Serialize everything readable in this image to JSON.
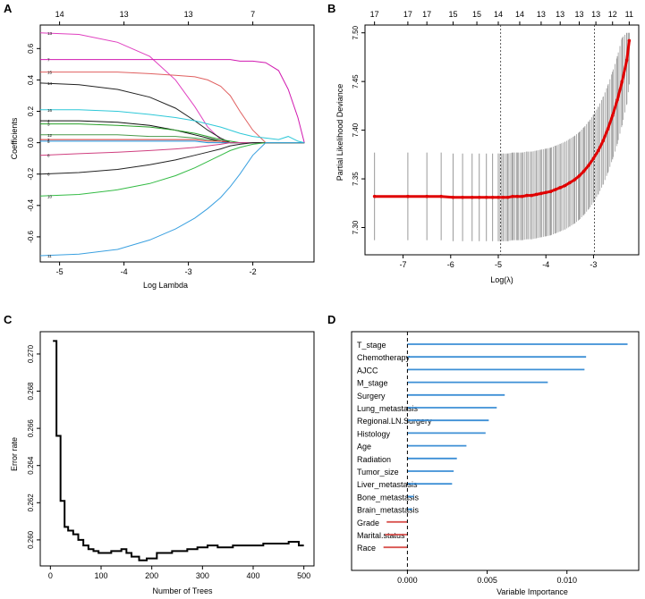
{
  "panel_labels": [
    "A",
    "B",
    "C",
    "D"
  ],
  "chart_data": [
    {
      "id": "A",
      "type": "line",
      "title": "",
      "xlabel": "Log Lambda",
      "ylabel": "Coefficients",
      "xlim": [
        -5.3,
        -1.05
      ],
      "ylim": [
        -0.76,
        0.75
      ],
      "xticks": [
        -5,
        -4,
        -3,
        -2
      ],
      "yticks": [
        -0.6,
        -0.4,
        -0.2,
        0.0,
        0.2,
        0.4,
        0.6
      ],
      "top_axis_ticks": [
        {
          "x": -5,
          "label": "14"
        },
        {
          "x": -4,
          "label": "13"
        },
        {
          "x": -3,
          "label": "13"
        },
        {
          "x": -2,
          "label": "7"
        }
      ],
      "x": [
        -5.3,
        -4.7,
        -4.1,
        -3.6,
        -3.2,
        -2.9,
        -2.7,
        -2.5,
        -2.35,
        -2.2,
        -2.0,
        -1.8,
        -1.6,
        -1.45,
        -1.3,
        -1.2
      ],
      "series": [
        {
          "name": "13",
          "label": "13",
          "color": "#e041c0",
          "values": [
            0.7,
            0.69,
            0.64,
            0.55,
            0.4,
            0.23,
            0.1,
            0.02,
            0.0,
            0,
            0,
            0,
            0,
            0,
            0,
            0
          ]
        },
        {
          "name": "7",
          "label": "7",
          "color": "#d11ab0",
          "values": [
            0.53,
            0.53,
            0.53,
            0.53,
            0.53,
            0.53,
            0.53,
            0.53,
            0.53,
            0.52,
            0.52,
            0.51,
            0.46,
            0.34,
            0.16,
            0.0
          ]
        },
        {
          "name": "15",
          "label": "15",
          "color": "#e06060",
          "values": [
            0.45,
            0.45,
            0.45,
            0.44,
            0.43,
            0.42,
            0.4,
            0.36,
            0.3,
            0.2,
            0.08,
            0.0,
            0,
            0,
            0,
            0
          ]
        },
        {
          "name": "14",
          "label": "14",
          "color": "#222222",
          "values": [
            0.38,
            0.37,
            0.34,
            0.29,
            0.22,
            0.14,
            0.08,
            0.03,
            0.0,
            0,
            0,
            0,
            0,
            0,
            0,
            0
          ]
        },
        {
          "name": "16",
          "label": "16",
          "color": "#2ec8d8",
          "values": [
            0.21,
            0.21,
            0.2,
            0.18,
            0.16,
            0.14,
            0.12,
            0.1,
            0.08,
            0.06,
            0.04,
            0.03,
            0.02,
            0.04,
            0.01,
            0.0
          ]
        },
        {
          "name": "4",
          "label": "4",
          "color": "#111111",
          "values": [
            0.14,
            0.14,
            0.13,
            0.11,
            0.08,
            0.05,
            0.03,
            0.01,
            0.0,
            0,
            0,
            0,
            0,
            0,
            0,
            0
          ]
        },
        {
          "name": "3",
          "label": "3",
          "color": "#28a028",
          "values": [
            0.12,
            0.12,
            0.11,
            0.1,
            0.08,
            0.06,
            0.04,
            0.02,
            0.01,
            0.0,
            0,
            0,
            0,
            0,
            0,
            0
          ]
        },
        {
          "name": "12",
          "label": "12",
          "color": "#4a9a4a",
          "values": [
            0.05,
            0.05,
            0.05,
            0.04,
            0.04,
            0.03,
            0.02,
            0.01,
            0.0,
            0,
            0,
            0,
            0,
            0,
            0,
            0
          ]
        },
        {
          "name": "2",
          "label": "2",
          "color": "#d03030",
          "values": [
            0.02,
            0.02,
            0.02,
            0.02,
            0.02,
            0.02,
            0.01,
            0.01,
            0.0,
            0,
            0,
            0,
            0,
            0,
            0,
            0
          ]
        },
        {
          "name": "5",
          "label": "5",
          "color": "#1a8fd8",
          "values": [
            0.01,
            0.01,
            0.01,
            0.01,
            0.01,
            0.01,
            0.0,
            0,
            0,
            0,
            0,
            0,
            0,
            0,
            0,
            0
          ]
        },
        {
          "name": "8",
          "label": "8",
          "color": "#d04080",
          "values": [
            -0.08,
            -0.07,
            -0.06,
            -0.05,
            -0.04,
            -0.03,
            -0.02,
            -0.01,
            0.0,
            0,
            0,
            0,
            0,
            0,
            0,
            0
          ]
        },
        {
          "name": "6",
          "label": "6",
          "color": "#222222",
          "values": [
            -0.2,
            -0.19,
            -0.17,
            -0.14,
            -0.11,
            -0.08,
            -0.06,
            -0.04,
            -0.02,
            -0.01,
            0.0,
            0,
            0,
            0,
            0,
            0
          ]
        },
        {
          "name": "10",
          "label": "10",
          "color": "#33bb44",
          "values": [
            -0.34,
            -0.33,
            -0.3,
            -0.26,
            -0.21,
            -0.16,
            -0.12,
            -0.08,
            -0.05,
            -0.03,
            -0.01,
            0.0,
            0,
            0,
            0,
            0
          ]
        },
        {
          "name": "11",
          "label": "11",
          "color": "#3aa0e0",
          "values": [
            -0.72,
            -0.71,
            -0.68,
            -0.62,
            -0.55,
            -0.48,
            -0.42,
            -0.35,
            -0.28,
            -0.2,
            -0.08,
            0.0,
            0,
            0,
            0,
            0
          ]
        }
      ]
    },
    {
      "id": "B",
      "type": "scatter",
      "title": "",
      "xlabel": "Log(λ)",
      "ylabel": "Partial Likelihood Deviance",
      "xlim": [
        -7.8,
        -2.05
      ],
      "ylim": [
        7.272,
        7.508
      ],
      "xticks": [
        -7,
        -6,
        -5,
        -4,
        -3
      ],
      "yticks": [
        7.3,
        7.35,
        7.4,
        7.45,
        7.5
      ],
      "top_axis_ticks": [
        {
          "x": -7.6,
          "label": "17"
        },
        {
          "x": -6.9,
          "label": "17"
        },
        {
          "x": -6.5,
          "label": "17"
        },
        {
          "x": -5.95,
          "label": "15"
        },
        {
          "x": -5.45,
          "label": "15"
        },
        {
          "x": -5.0,
          "label": "14"
        },
        {
          "x": -4.55,
          "label": "14"
        },
        {
          "x": -4.1,
          "label": "13"
        },
        {
          "x": -3.7,
          "label": "13"
        },
        {
          "x": -3.3,
          "label": "13"
        },
        {
          "x": -2.95,
          "label": "13"
        },
        {
          "x": -2.6,
          "label": "12"
        },
        {
          "x": -2.25,
          "label": "11"
        }
      ],
      "vlines": [
        -4.95,
        -2.98
      ],
      "x": [
        -7.6,
        -6.9,
        -6.5,
        -6.2,
        -5.95,
        -5.75,
        -5.55,
        -5.4,
        -5.25,
        -5.12,
        -5.0,
        -4.9,
        -4.8,
        -4.7,
        -4.6,
        -4.5,
        -4.4,
        -4.3,
        -4.2,
        -4.1,
        -4.0,
        -3.9,
        -3.8,
        -3.7,
        -3.6,
        -3.5,
        -3.4,
        -3.3,
        -3.2,
        -3.1,
        -3.0,
        -2.9,
        -2.8,
        -2.7,
        -2.6,
        -2.5,
        -2.4,
        -2.3,
        -2.25
      ],
      "values": [
        7.332,
        7.332,
        7.332,
        7.332,
        7.331,
        7.331,
        7.331,
        7.331,
        7.331,
        7.331,
        7.331,
        7.331,
        7.331,
        7.332,
        7.332,
        7.332,
        7.333,
        7.333,
        7.334,
        7.335,
        7.336,
        7.337,
        7.339,
        7.341,
        7.343,
        7.346,
        7.349,
        7.353,
        7.358,
        7.364,
        7.371,
        7.379,
        7.389,
        7.401,
        7.415,
        7.431,
        7.45,
        7.472,
        7.492
      ],
      "error_lower": [
        7.287,
        7.287,
        7.287,
        7.287,
        7.286,
        7.286,
        7.286,
        7.286,
        7.286,
        7.286,
        7.286,
        7.286,
        7.286,
        7.287,
        7.287,
        7.287,
        7.288,
        7.288,
        7.289,
        7.29,
        7.291,
        7.292,
        7.294,
        7.296,
        7.298,
        7.301,
        7.304,
        7.308,
        7.313,
        7.319,
        7.326,
        7.334,
        7.344,
        7.356,
        7.37,
        7.386,
        7.405,
        7.427,
        7.447
      ],
      "error_upper": [
        7.377,
        7.377,
        7.377,
        7.377,
        7.376,
        7.376,
        7.376,
        7.376,
        7.376,
        7.376,
        7.376,
        7.376,
        7.376,
        7.377,
        7.377,
        7.377,
        7.378,
        7.378,
        7.379,
        7.38,
        7.381,
        7.382,
        7.384,
        7.386,
        7.388,
        7.391,
        7.394,
        7.398,
        7.403,
        7.409,
        7.416,
        7.424,
        7.434,
        7.446,
        7.46,
        7.476,
        7.495,
        7.5,
        7.5
      ]
    },
    {
      "id": "C",
      "type": "line",
      "title": "",
      "xlabel": "Number of Trees",
      "ylabel": "Error rate",
      "xlim": [
        -20,
        520
      ],
      "ylim": [
        0.2586,
        0.2712
      ],
      "xticks": [
        0,
        100,
        200,
        300,
        400,
        500
      ],
      "yticks": [
        0.26,
        0.262,
        0.264,
        0.266,
        0.268,
        0.27
      ],
      "x": [
        5,
        12,
        20,
        28,
        35,
        45,
        55,
        65,
        75,
        85,
        95,
        105,
        120,
        140,
        150,
        160,
        175,
        190,
        210,
        240,
        270,
        290,
        310,
        330,
        360,
        390,
        420,
        450,
        470,
        490,
        500
      ],
      "values": [
        0.2707,
        0.2656,
        0.2621,
        0.2607,
        0.2605,
        0.2603,
        0.26,
        0.2597,
        0.2595,
        0.2594,
        0.2593,
        0.2593,
        0.2594,
        0.2595,
        0.2593,
        0.2591,
        0.2589,
        0.259,
        0.2593,
        0.2594,
        0.2595,
        0.2596,
        0.2597,
        0.2596,
        0.2597,
        0.2597,
        0.2598,
        0.2598,
        0.2599,
        0.2597,
        0.2597
      ]
    },
    {
      "id": "D",
      "type": "bar",
      "title": "",
      "xlabel": "Variable Importance",
      "ylabel": "",
      "xlim": [
        -0.0035,
        0.0145
      ],
      "xticks": [
        0.0,
        0.005,
        0.01
      ],
      "xtick_labels": [
        "0.000",
        "0.005",
        "0.010"
      ],
      "categories": [
        "T_stage",
        "Chemotherapy",
        "AJCC",
        "M_stage",
        "Surgery",
        "Lung_metastasis",
        "Regional.LN.Surgery",
        "Histology",
        "Age",
        "Radiation",
        "Tumor_size",
        "Liver_metastasis",
        "Bone_metastasis",
        "Brain_metastasis",
        "Grade",
        "Marital.status",
        "Race"
      ],
      "values": [
        0.0138,
        0.0112,
        0.0111,
        0.0088,
        0.0061,
        0.0056,
        0.0051,
        0.0049,
        0.0037,
        0.0031,
        0.0029,
        0.0028,
        0.0004,
        0.0003,
        -0.0013,
        -0.0014,
        -0.0015
      ],
      "positive_color": "#3d8fd6",
      "negative_color": "#d9534f"
    }
  ]
}
